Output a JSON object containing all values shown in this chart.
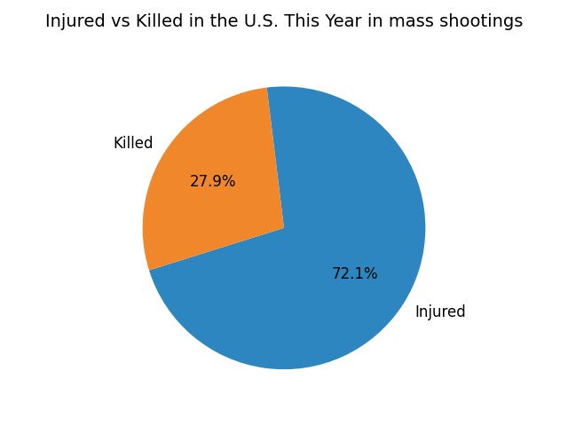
{
  "title": "Injured vs Killed in the U.S. This Year in mass shootings",
  "labels": [
    "Injured",
    "Killed"
  ],
  "values": [
    72.1,
    27.9
  ],
  "colors": [
    "#2e86c1",
    "#f0872a"
  ],
  "startangle": 97,
  "title_fontsize": 14,
  "label_fontsize": 12,
  "autopct_fontsize": 12,
  "background_color": "#ffffff",
  "figsize": [
    6.4,
    4.8
  ],
  "dpi": 100
}
